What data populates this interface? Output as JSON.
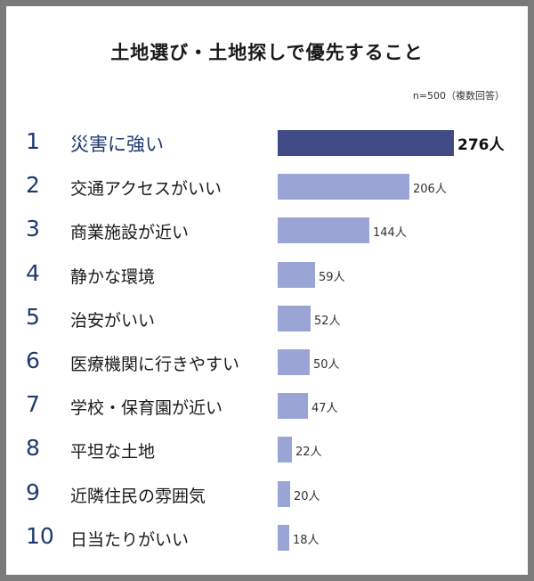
{
  "title": "土地選び・土地探しで優先すること",
  "note": "n=500（複数回答）",
  "chart_data": {
    "type": "bar",
    "orientation": "horizontal",
    "title": "土地選び・土地探しで優先すること",
    "ranks": [
      "1",
      "2",
      "3",
      "4",
      "5",
      "6",
      "7",
      "8",
      "9",
      "10"
    ],
    "categories": [
      "災害に強い",
      "交通アクセスがいい",
      "商業施設が近い",
      "静かな環境",
      "治安がいい",
      "医療機関に行きやすい",
      "学校・保育園が近い",
      "平坦な土地",
      "近隣住民の雰囲気",
      "日当たりがいい"
    ],
    "values": [
      276,
      206,
      144,
      59,
      52,
      50,
      47,
      22,
      20,
      18
    ],
    "value_labels": [
      "276人",
      "206人",
      "144人",
      "59人",
      "52人",
      "50人",
      "47人",
      "22人",
      "20人",
      "18人"
    ],
    "colors": {
      "highlight": "#3f4a86",
      "bar": "#9aa5d6"
    }
  }
}
